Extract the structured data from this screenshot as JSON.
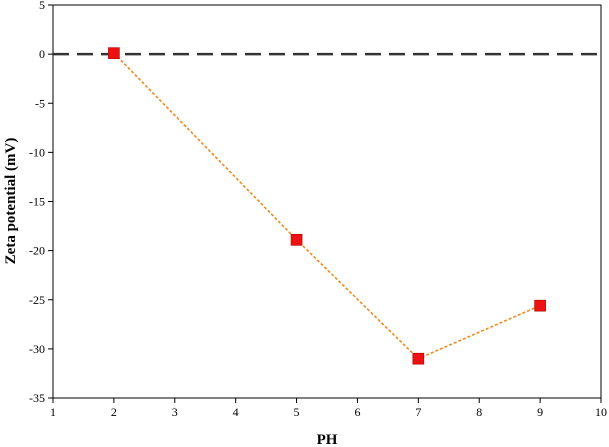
{
  "chart_data": {
    "type": "scatter",
    "title": "",
    "xlabel": "PH",
    "ylabel": "Zeta potential (mV)",
    "xlim": [
      1,
      10
    ],
    "ylim": [
      -35,
      5
    ],
    "x_ticks": [
      1,
      2,
      3,
      4,
      5,
      6,
      7,
      8,
      9,
      10
    ],
    "y_ticks": [
      5,
      0,
      -5,
      -10,
      -15,
      -20,
      -25,
      -30,
      -35
    ],
    "grid": false,
    "legend": "none",
    "series": [
      {
        "x": [
          2,
          5,
          7,
          9
        ],
        "y": [
          0.1,
          -18.9,
          -31.0,
          -25.6
        ],
        "marker": "square",
        "marker_color": "#ee1111",
        "line_style": "dotted",
        "line_color": "#f0891e"
      }
    ],
    "reference_lines": [
      {
        "y": 0,
        "style": "dashed",
        "color": "#333333"
      }
    ]
  }
}
